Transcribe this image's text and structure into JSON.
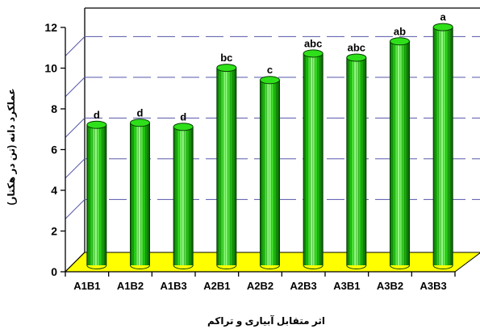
{
  "chart_data": {
    "type": "bar",
    "categories": [
      "A1B1",
      "A1B2",
      "A1B3",
      "A2B1",
      "A2B2",
      "A2B3",
      "A3B1",
      "A3B2",
      "A3B3"
    ],
    "values": [
      6.9,
      7.0,
      6.8,
      9.7,
      9.1,
      10.4,
      10.2,
      11.0,
      11.7
    ],
    "labels": [
      "d",
      "d",
      "d",
      "bc",
      "c",
      "abc",
      "abc",
      "ab",
      "a"
    ],
    "xlabel": "اثر متقابل آبیاری و تراکم",
    "ylabel": "عملکرد دانه (تن در هکتار)",
    "ylim": [
      0,
      12
    ],
    "yticks": [
      0,
      2,
      4,
      6,
      8,
      10,
      12
    ],
    "gridlines": [
      2.6,
      4.6,
      6.6,
      8.6,
      10.6
    ],
    "colors": {
      "bar": "#22cc11",
      "bar_dark": "#0d6a07",
      "bar_light": "#9dff8a",
      "floor": "#ffff00",
      "grid": "#5555aa"
    }
  }
}
